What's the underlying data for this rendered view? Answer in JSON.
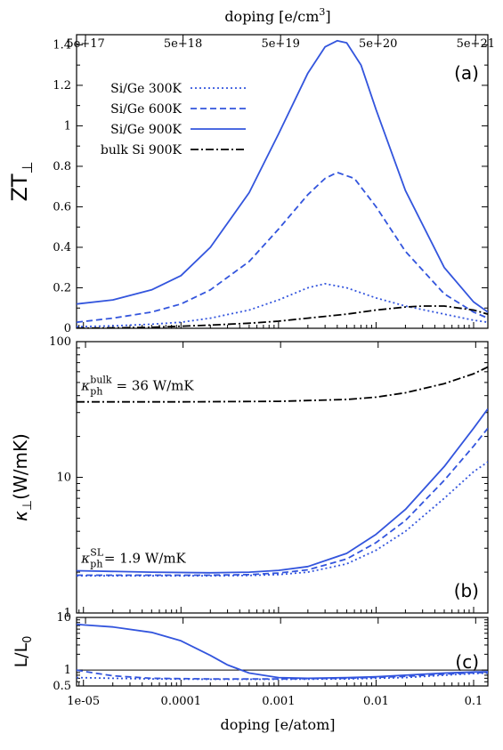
{
  "colors": {
    "sige": "#3355dd",
    "bulk": "#000000",
    "axis": "#000000"
  },
  "top_axis": {
    "label": "doping [e/cm",
    "label_sup": "3",
    "label_end": "]",
    "ticks": [
      {
        "value": 1.05e-05,
        "label": "5e+17"
      },
      {
        "value": 0.000105,
        "label": "5e+18"
      },
      {
        "value": 0.00105,
        "label": "5e+19"
      },
      {
        "value": 0.0105,
        "label": "5e+20"
      },
      {
        "value": 0.105,
        "label": "5e+21"
      }
    ]
  },
  "bottom_axis": {
    "label": "doping [e/atom]",
    "ticks": [
      {
        "value": 1e-05,
        "label": "1e-05"
      },
      {
        "value": 0.0001,
        "label": "0.0001"
      },
      {
        "value": 0.001,
        "label": "0.001"
      },
      {
        "value": 0.01,
        "label": "0.01"
      },
      {
        "value": 0.1,
        "label": "0.1"
      }
    ]
  },
  "chart_data": [
    {
      "type": "line",
      "panel": "(a)",
      "ylabel": "ZT",
      "ylabel_sub": "⊥",
      "xscale": "log",
      "xlim": [
        8.5e-06,
        0.14
      ],
      "ylim": [
        0,
        1.45
      ],
      "yticks": [
        {
          "value": 0,
          "label": "0"
        },
        {
          "value": 0.2,
          "label": "0.2"
        },
        {
          "value": 0.4,
          "label": "0.4"
        },
        {
          "value": 0.6,
          "label": "0.6"
        },
        {
          "value": 0.8,
          "label": "0.8"
        },
        {
          "value": 1.0,
          "label": "1"
        },
        {
          "value": 1.2,
          "label": "1.2"
        },
        {
          "value": 1.4,
          "label": "1.4"
        }
      ],
      "legend_position": "top-left",
      "series": [
        {
          "name": "Si/Ge 300K",
          "style": "dotted",
          "color": "#3355dd",
          "x": [
            8.5e-06,
            2e-05,
            5e-05,
            0.0001,
            0.0002,
            0.0005,
            0.001,
            0.002,
            0.003,
            0.005,
            0.01,
            0.02,
            0.05,
            0.1,
            0.14
          ],
          "y": [
            0.008,
            0.012,
            0.02,
            0.03,
            0.05,
            0.09,
            0.14,
            0.2,
            0.22,
            0.2,
            0.15,
            0.11,
            0.07,
            0.04,
            0.03
          ]
        },
        {
          "name": "Si/Ge 600K",
          "style": "dashed",
          "color": "#3355dd",
          "x": [
            8.5e-06,
            2e-05,
            5e-05,
            0.0001,
            0.0002,
            0.0005,
            0.001,
            0.002,
            0.003,
            0.004,
            0.006,
            0.01,
            0.02,
            0.05,
            0.1,
            0.14
          ],
          "y": [
            0.03,
            0.05,
            0.08,
            0.12,
            0.19,
            0.33,
            0.49,
            0.66,
            0.74,
            0.77,
            0.74,
            0.6,
            0.38,
            0.17,
            0.08,
            0.05
          ]
        },
        {
          "name": "Si/Ge 900K",
          "style": "solid",
          "color": "#3355dd",
          "x": [
            8.5e-06,
            2e-05,
            5e-05,
            0.0001,
            0.0002,
            0.0005,
            0.001,
            0.002,
            0.003,
            0.004,
            0.005,
            0.007,
            0.01,
            0.02,
            0.05,
            0.1,
            0.14
          ],
          "y": [
            0.12,
            0.14,
            0.19,
            0.26,
            0.4,
            0.67,
            0.96,
            1.26,
            1.39,
            1.42,
            1.41,
            1.3,
            1.08,
            0.68,
            0.3,
            0.13,
            0.08
          ]
        },
        {
          "name": "bulk Si 900K",
          "style": "dashdot",
          "color": "#000000",
          "x": [
            8.5e-06,
            2e-05,
            5e-05,
            0.0001,
            0.0002,
            0.0005,
            0.001,
            0.002,
            0.005,
            0.01,
            0.02,
            0.03,
            0.05,
            0.1,
            0.14
          ],
          "y": [
            0.0,
            0.002,
            0.005,
            0.01,
            0.016,
            0.025,
            0.035,
            0.05,
            0.07,
            0.09,
            0.105,
            0.11,
            0.11,
            0.09,
            0.07
          ]
        }
      ]
    },
    {
      "type": "line",
      "panel": "(b)",
      "ylabel": "κ",
      "ylabel_sub": "⊥",
      "ylabel_unit": "(W/mK)",
      "xscale": "log",
      "yscale": "log",
      "xlim": [
        8.5e-06,
        0.14
      ],
      "ylim": [
        1,
        100
      ],
      "yticks": [
        {
          "value": 1,
          "label": "1"
        },
        {
          "value": 10,
          "label": "10"
        },
        {
          "value": 100,
          "label": "100"
        }
      ],
      "annotations": [
        {
          "kappa": "κ",
          "sub": "ph",
          "sup": "bulk",
          "text": " = 36 W/mK",
          "anchor_x": 9.5e-06,
          "anchor_y": 44
        },
        {
          "kappa": "κ",
          "sub": "ph",
          "sup": "SL",
          "text": " = 1.9 W/mK",
          "anchor_x": 9.5e-06,
          "anchor_y": 2.35
        }
      ],
      "series": [
        {
          "name": "Si/Ge 300K",
          "style": "dotted",
          "color": "#3355dd",
          "x": [
            8.5e-06,
            5e-05,
            0.0002,
            0.0005,
            0.001,
            0.002,
            0.005,
            0.01,
            0.02,
            0.05,
            0.1,
            0.14
          ],
          "y": [
            1.88,
            1.88,
            1.88,
            1.89,
            1.92,
            2.0,
            2.3,
            2.9,
            4.0,
            7.0,
            11.0,
            13.0
          ]
        },
        {
          "name": "Si/Ge 600K",
          "style": "dashed",
          "color": "#3355dd",
          "x": [
            8.5e-06,
            5e-05,
            0.0002,
            0.0005,
            0.001,
            0.002,
            0.005,
            0.01,
            0.02,
            0.05,
            0.1,
            0.14
          ],
          "y": [
            1.9,
            1.9,
            1.9,
            1.92,
            1.97,
            2.08,
            2.5,
            3.3,
            4.8,
            9.5,
            17.0,
            23.0
          ]
        },
        {
          "name": "Si/Ge 900K",
          "style": "solid",
          "color": "#3355dd",
          "x": [
            8.5e-06,
            5e-05,
            0.0002,
            0.0005,
            0.001,
            0.002,
            0.005,
            0.01,
            0.02,
            0.05,
            0.1,
            0.14
          ],
          "y": [
            2.05,
            2.0,
            1.98,
            2.0,
            2.06,
            2.2,
            2.75,
            3.8,
            5.8,
            12.0,
            23.0,
            32.0
          ]
        },
        {
          "name": "bulk Si 900K",
          "style": "dashdot",
          "color": "#000000",
          "x": [
            8.5e-06,
            0.0001,
            0.001,
            0.005,
            0.01,
            0.02,
            0.05,
            0.1,
            0.14
          ],
          "y": [
            36,
            36,
            36.3,
            37.5,
            39,
            42,
            49,
            58,
            65
          ]
        }
      ]
    },
    {
      "type": "line",
      "panel": "(c)",
      "ylabel": "L/L",
      "ylabel_sub": "0",
      "xscale": "log",
      "yscale": "log",
      "xlim": [
        8.5e-06,
        0.14
      ],
      "ylim": [
        0.5,
        10
      ],
      "yticks": [
        {
          "value": 0.5,
          "label": "0.5"
        },
        {
          "value": 1,
          "label": "1"
        },
        {
          "value": 10,
          "label": "10"
        }
      ],
      "reference_line": 1,
      "series": [
        {
          "name": "Si/Ge 300K",
          "style": "dotted",
          "color": "#3355dd",
          "x": [
            8.5e-06,
            2e-05,
            5e-05,
            0.0002,
            0.001,
            0.005,
            0.02,
            0.05,
            0.1,
            0.14
          ],
          "y": [
            0.72,
            0.7,
            0.68,
            0.67,
            0.67,
            0.68,
            0.72,
            0.8,
            0.86,
            0.88
          ]
        },
        {
          "name": "Si/Ge 600K",
          "style": "dashed",
          "color": "#3355dd",
          "x": [
            8.5e-06,
            1.2e-05,
            2e-05,
            5e-05,
            0.0002,
            0.001,
            0.005,
            0.02,
            0.05,
            0.1,
            0.14
          ],
          "y": [
            1.0,
            0.9,
            0.78,
            0.7,
            0.68,
            0.68,
            0.7,
            0.76,
            0.84,
            0.89,
            0.9
          ]
        },
        {
          "name": "Si/Ge 900K",
          "style": "solid",
          "color": "#3355dd",
          "x": [
            8.5e-06,
            1e-05,
            2e-05,
            5e-05,
            0.0001,
            0.0002,
            0.0003,
            0.0005,
            0.001,
            0.002,
            0.005,
            0.01,
            0.02,
            0.05,
            0.1,
            0.14
          ],
          "y": [
            7.4,
            7.2,
            6.6,
            5.2,
            3.6,
            1.9,
            1.25,
            0.88,
            0.72,
            0.7,
            0.72,
            0.75,
            0.8,
            0.88,
            0.92,
            0.93
          ]
        }
      ]
    }
  ]
}
